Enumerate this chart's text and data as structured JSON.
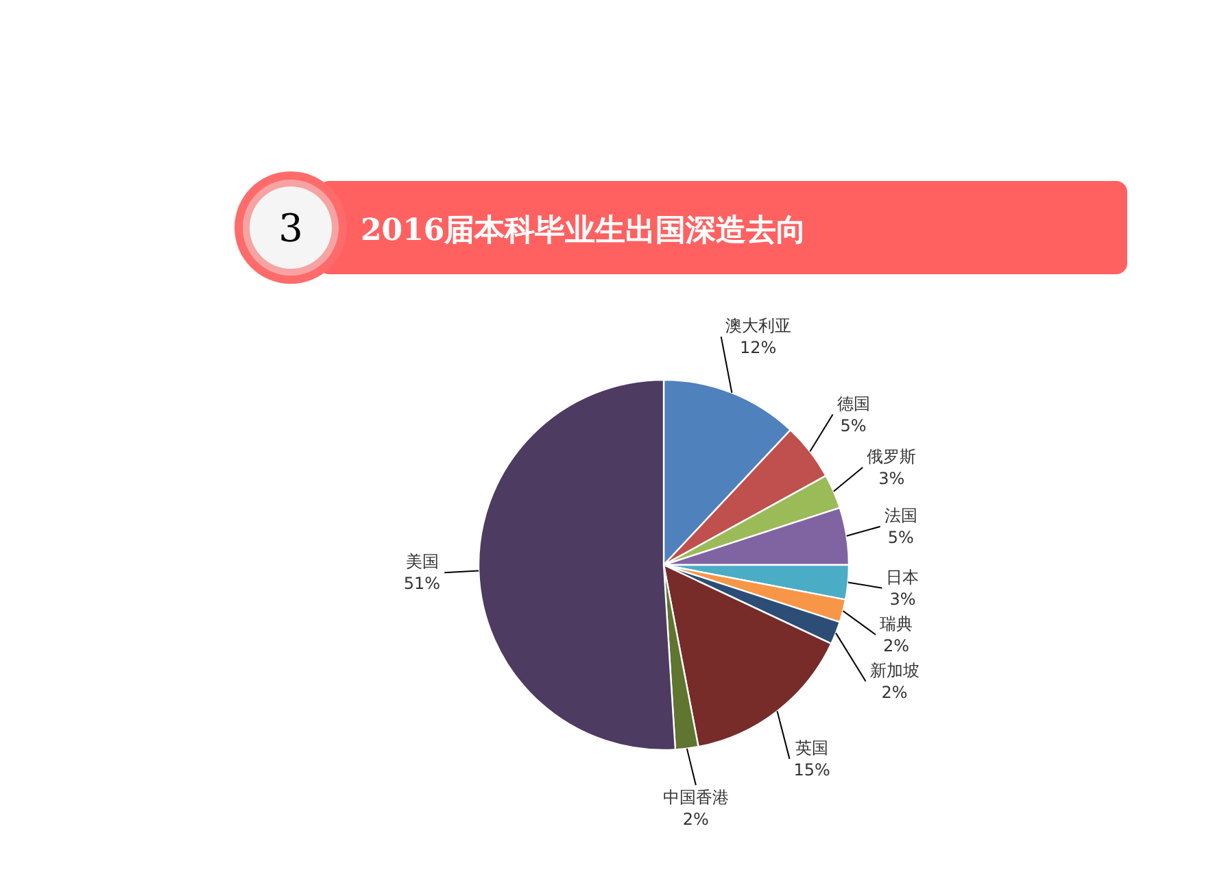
{
  "chart_data": {
    "type": "pie",
    "title": "2016届本科毕业生出国深造去向",
    "annotations": [
      "3"
    ],
    "categories": [
      "澳大利亚",
      "德国",
      "俄罗斯",
      "法国",
      "日本",
      "瑞典",
      "新加坡",
      "英国",
      "中国香港",
      "美国"
    ],
    "values": [
      12,
      5,
      3,
      5,
      3,
      2,
      2,
      15,
      2,
      51
    ],
    "colors": [
      "#4f81bd",
      "#c0504d",
      "#9bbb59",
      "#8064a2",
      "#4bacc6",
      "#f79646",
      "#2c4d75",
      "#772c2a",
      "#5f7530",
      "#4d3b62"
    ],
    "value_labels": [
      "12%",
      "5%",
      "3%",
      "5%",
      "3%",
      "2%",
      "2%",
      "15%",
      "2%",
      "51%"
    ]
  }
}
